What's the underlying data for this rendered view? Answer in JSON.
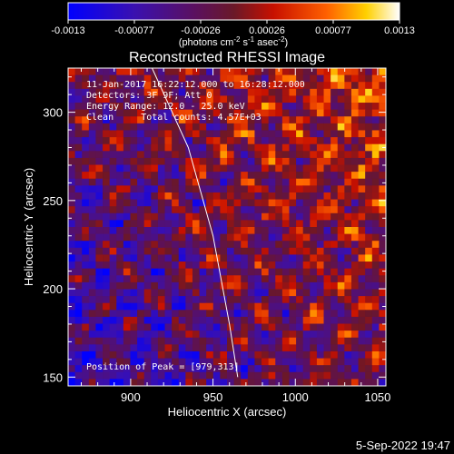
{
  "chart_data": {
    "type": "heatmap",
    "title": "Reconstructed RHESSI Image",
    "xlabel": "Heliocentric X (arcsec)",
    "ylabel": "Heliocentric Y (arcsec)",
    "xlim": [
      862,
      1055
    ],
    "ylim": [
      145,
      325
    ],
    "xticks": [
      900,
      950,
      1000,
      1050
    ],
    "yticks": [
      150,
      200,
      250,
      300
    ],
    "colorbar": {
      "ticks": [
        "-0.0013",
        "-0.00077",
        "-0.00026",
        "0.00026",
        "0.00077",
        "0.0013"
      ],
      "range": [
        -0.0013,
        0.0013
      ],
      "unit_label": "(photons cm",
      "unit_sup1": "-2",
      "unit_mid": " s",
      "unit_sup2": "-1",
      "unit_mid2": " asec",
      "unit_sup3": "-2",
      "unit_end": ")"
    },
    "annotations": [
      "11-Jan-2017 16:22:12.000 to 16:28:12.000",
      "Detectors: 3F 9F; Att 0",
      "Energy Range: 12.0 - 25.0 keV",
      "Clean     Total counts: 4.57E+03"
    ],
    "peak_annotation": "Position of Peak = [979,313]",
    "limb_curve": [
      [
        913,
        325
      ],
      [
        935,
        280
      ],
      [
        950,
        230
      ],
      [
        960,
        180
      ],
      [
        965,
        150
      ]
    ]
  },
  "footer_date": "5-Sep-2022 19:47"
}
